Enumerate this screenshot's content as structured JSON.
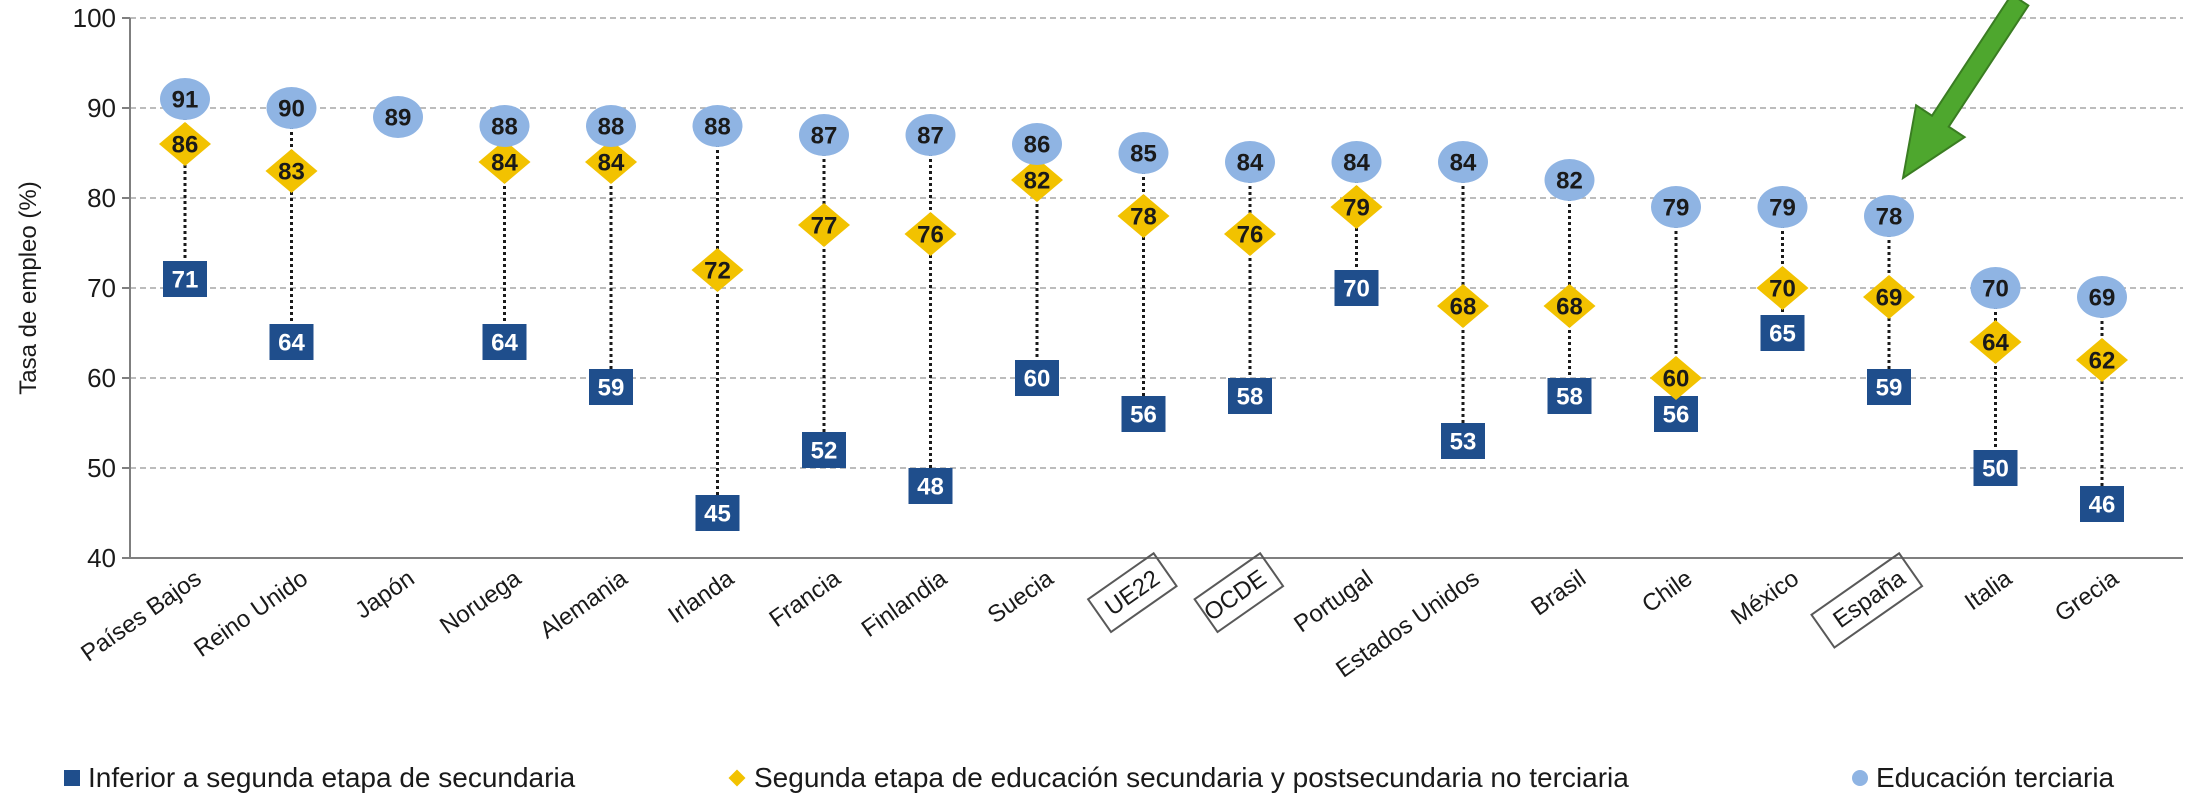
{
  "chart_data": {
    "type": "scatter",
    "ylabel": "Tasa de empleo (%)",
    "ylim": [
      40,
      100
    ],
    "yticks": [
      40,
      50,
      60,
      70,
      80,
      90,
      100
    ],
    "grid": true,
    "legend_position": "bottom",
    "categories": [
      "Países Bajos",
      "Reino Unido",
      "Japón",
      "Noruega",
      "Alemania",
      "Irlanda",
      "Francia",
      "Finlandia",
      "Suecia",
      "UE22",
      "OCDE",
      "Portugal",
      "Estados Unidos",
      "Brasil",
      "Chile",
      "México",
      "España",
      "Italia",
      "Grecia"
    ],
    "boxed_categories": [
      "UE22",
      "OCDE",
      "España"
    ],
    "series": [
      {
        "name": "Inferior a segunda etapa de secundaria",
        "marker": "square",
        "color": "#1f4e8c",
        "values": [
          71,
          64,
          null,
          64,
          59,
          45,
          52,
          48,
          60,
          56,
          58,
          70,
          53,
          58,
          56,
          65,
          59,
          50,
          46
        ]
      },
      {
        "name": "Segunda etapa de educación secundaria y postsecundaria no terciaria",
        "marker": "diamond",
        "color": "#f2c200",
        "values": [
          86,
          83,
          null,
          84,
          84,
          72,
          77,
          76,
          82,
          78,
          76,
          79,
          68,
          68,
          60,
          70,
          69,
          64,
          62
        ]
      },
      {
        "name": "Educación terciaria",
        "marker": "circle",
        "color": "#8fb4e3",
        "values": [
          91,
          90,
          89,
          88,
          88,
          88,
          87,
          87,
          86,
          85,
          84,
          84,
          84,
          82,
          79,
          79,
          78,
          70,
          69
        ]
      }
    ],
    "annotation": {
      "type": "arrow",
      "color": "#4ea72e",
      "target": "España"
    }
  }
}
